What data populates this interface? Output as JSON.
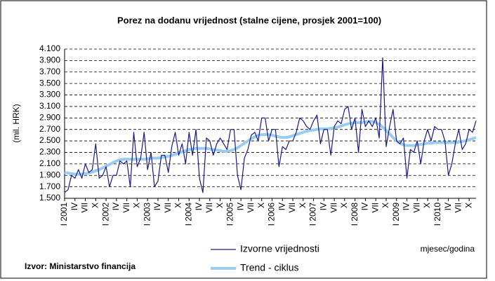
{
  "chart_data": {
    "type": "line",
    "title": "Porez na dodanu vrijednost (stalne cijene, prosjek 2001=100)",
    "y_label": "(mil. HRK)",
    "x_label": "mjesec/godina",
    "source": "Izvor: Ministarstvo financija",
    "categories": [
      "I 2001",
      null,
      null,
      "IV",
      null,
      null,
      "VII",
      null,
      null,
      "X",
      null,
      null,
      "I 2002",
      null,
      null,
      "IV",
      null,
      null,
      "VII",
      null,
      null,
      "X",
      null,
      null,
      "I 2003",
      null,
      null,
      "IV",
      null,
      null,
      "VII",
      null,
      null,
      "X",
      null,
      null,
      "I 2004",
      null,
      null,
      "IV",
      null,
      null,
      "VII",
      null,
      null,
      "X",
      null,
      null,
      "I 2005",
      null,
      null,
      "IV",
      null,
      null,
      "VII",
      null,
      null,
      "X",
      null,
      null,
      "I 2006",
      null,
      null,
      "IV",
      null,
      null,
      "VII",
      null,
      null,
      "X",
      null,
      null,
      "I 2007",
      null,
      null,
      "IV",
      null,
      null,
      "VII",
      null,
      null,
      "X",
      null,
      null,
      "I 2008",
      null,
      null,
      "IV",
      null,
      null,
      "VII",
      null,
      null,
      "X",
      null,
      null,
      "I 2009",
      null,
      null,
      "IV",
      null,
      null,
      "VII",
      null,
      null,
      "X",
      null,
      null,
      "I 2010",
      null,
      null,
      "IV",
      null,
      null,
      "VII",
      null,
      null,
      "X",
      null,
      null
    ],
    "series": [
      {
        "name": "Izvorne vrijednosti",
        "color": "#1a1a80",
        "values": [
          1600,
          1650,
          1900,
          1850,
          2000,
          1850,
          2100,
          1950,
          2000,
          2450,
          1850,
          1900,
          2050,
          1700,
          1900,
          1900,
          2150,
          2100,
          2150,
          1700,
          2650,
          2050,
          2200,
          2650,
          2000,
          2300,
          1700,
          1800,
          2250,
          2250,
          1950,
          2400,
          2650,
          2250,
          2450,
          2100,
          2650,
          2250,
          2700,
          1850,
          1600,
          2550,
          2500,
          2250,
          2450,
          2550,
          2450,
          2350,
          2700,
          2700,
          1900,
          1650,
          2200,
          2350,
          2600,
          2650,
          2500,
          2900,
          2900,
          2500,
          2700,
          2700,
          2050,
          2400,
          2350,
          2500,
          2500,
          2650,
          2900,
          2850,
          2750,
          2700,
          2850,
          2950,
          2450,
          2700,
          2700,
          2250,
          2750,
          2850,
          2800,
          3050,
          3100,
          2700,
          2900,
          2300,
          3050,
          2750,
          2850,
          2750,
          2900,
          2550,
          3950,
          2400,
          2750,
          3050,
          2500,
          2450,
          2550,
          1850,
          2350,
          2300,
          2500,
          2100,
          2500,
          2700,
          2500,
          2750,
          2700,
          2700,
          2500,
          1900,
          2100,
          2450,
          2700,
          2350,
          2450,
          2700,
          2650,
          2850
        ]
      },
      {
        "name": "Trend - ciklus",
        "color": "#99ccf0",
        "values": [
          1950,
          1940,
          1930,
          1920,
          1920,
          1920,
          1930,
          1940,
          1960,
          1980,
          2000,
          2030,
          2060,
          2090,
          2120,
          2150,
          2170,
          2180,
          2180,
          2180,
          2180,
          2180,
          2180,
          2180,
          2190,
          2200,
          2200,
          2200,
          2210,
          2220,
          2230,
          2250,
          2270,
          2290,
          2310,
          2330,
          2350,
          2360,
          2370,
          2370,
          2370,
          2370,
          2360,
          2350,
          2340,
          2330,
          2320,
          2320,
          2330,
          2350,
          2380,
          2420,
          2460,
          2500,
          2540,
          2570,
          2600,
          2610,
          2610,
          2610,
          2600,
          2580,
          2570,
          2560,
          2560,
          2570,
          2590,
          2610,
          2630,
          2650,
          2670,
          2680,
          2690,
          2700,
          2710,
          2710,
          2710,
          2720,
          2730,
          2740,
          2760,
          2780,
          2800,
          2810,
          2820,
          2820,
          2820,
          2830,
          2840,
          2840,
          2820,
          2790,
          2740,
          2680,
          2620,
          2560,
          2500,
          2460,
          2430,
          2420,
          2420,
          2420,
          2430,
          2440,
          2450,
          2460,
          2460,
          2470,
          2470,
          2470,
          2470,
          2470,
          2470,
          2470,
          2480,
          2490,
          2500,
          2520,
          2540,
          2560
        ]
      }
    ],
    "ylim": [
      1500,
      4100
    ],
    "yticks": [
      {
        "value": 1500,
        "label": "1.500"
      },
      {
        "value": 1700,
        "label": "1.700"
      },
      {
        "value": 1900,
        "label": "1.900"
      },
      {
        "value": 2100,
        "label": "2.100"
      },
      {
        "value": 2300,
        "label": "2.300"
      },
      {
        "value": 2500,
        "label": "2.500"
      },
      {
        "value": 2700,
        "label": "2.700"
      },
      {
        "value": 2900,
        "label": "2.900"
      },
      {
        "value": 3100,
        "label": "3.100"
      },
      {
        "value": 3300,
        "label": "3.300"
      },
      {
        "value": 3500,
        "label": "3.500"
      },
      {
        "value": 3700,
        "label": "3.700"
      },
      {
        "value": 3900,
        "label": "3.900"
      },
      {
        "value": 4100,
        "label": "4.100"
      }
    ],
    "grid": true
  }
}
